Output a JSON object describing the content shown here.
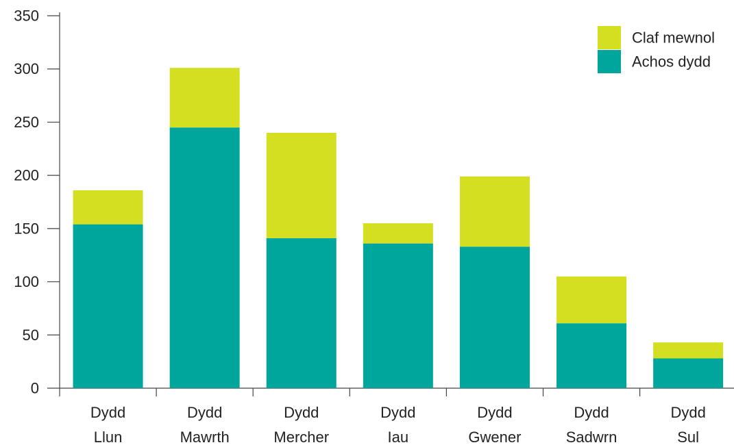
{
  "chart_data": {
    "type": "bar",
    "stacked": true,
    "categories": [
      [
        "Dydd",
        "Llun"
      ],
      [
        "Dydd",
        "Mawrth"
      ],
      [
        "Dydd",
        "Mercher"
      ],
      [
        "Dydd",
        "Iau"
      ],
      [
        "Dydd",
        "Gwener"
      ],
      [
        "Dydd",
        "Sadwrn"
      ],
      [
        "Dydd",
        "Sul"
      ]
    ],
    "series": [
      {
        "name": "Achos dydd",
        "color": "#00A69C",
        "values": [
          154,
          245,
          141,
          136,
          133,
          61,
          28
        ]
      },
      {
        "name": "Claf mewnol",
        "color": "#D5DF21",
        "values": [
          32,
          56,
          99,
          19,
          66,
          44,
          15
        ]
      }
    ],
    "ylim": [
      0,
      350
    ],
    "yticks": [
      0,
      50,
      100,
      150,
      200,
      250,
      300,
      350
    ],
    "title": "",
    "xlabel": "",
    "ylabel": "",
    "grid": false,
    "legend_position": "top-right",
    "legend_order": [
      "Claf mewnol",
      "Achos dydd"
    ]
  }
}
